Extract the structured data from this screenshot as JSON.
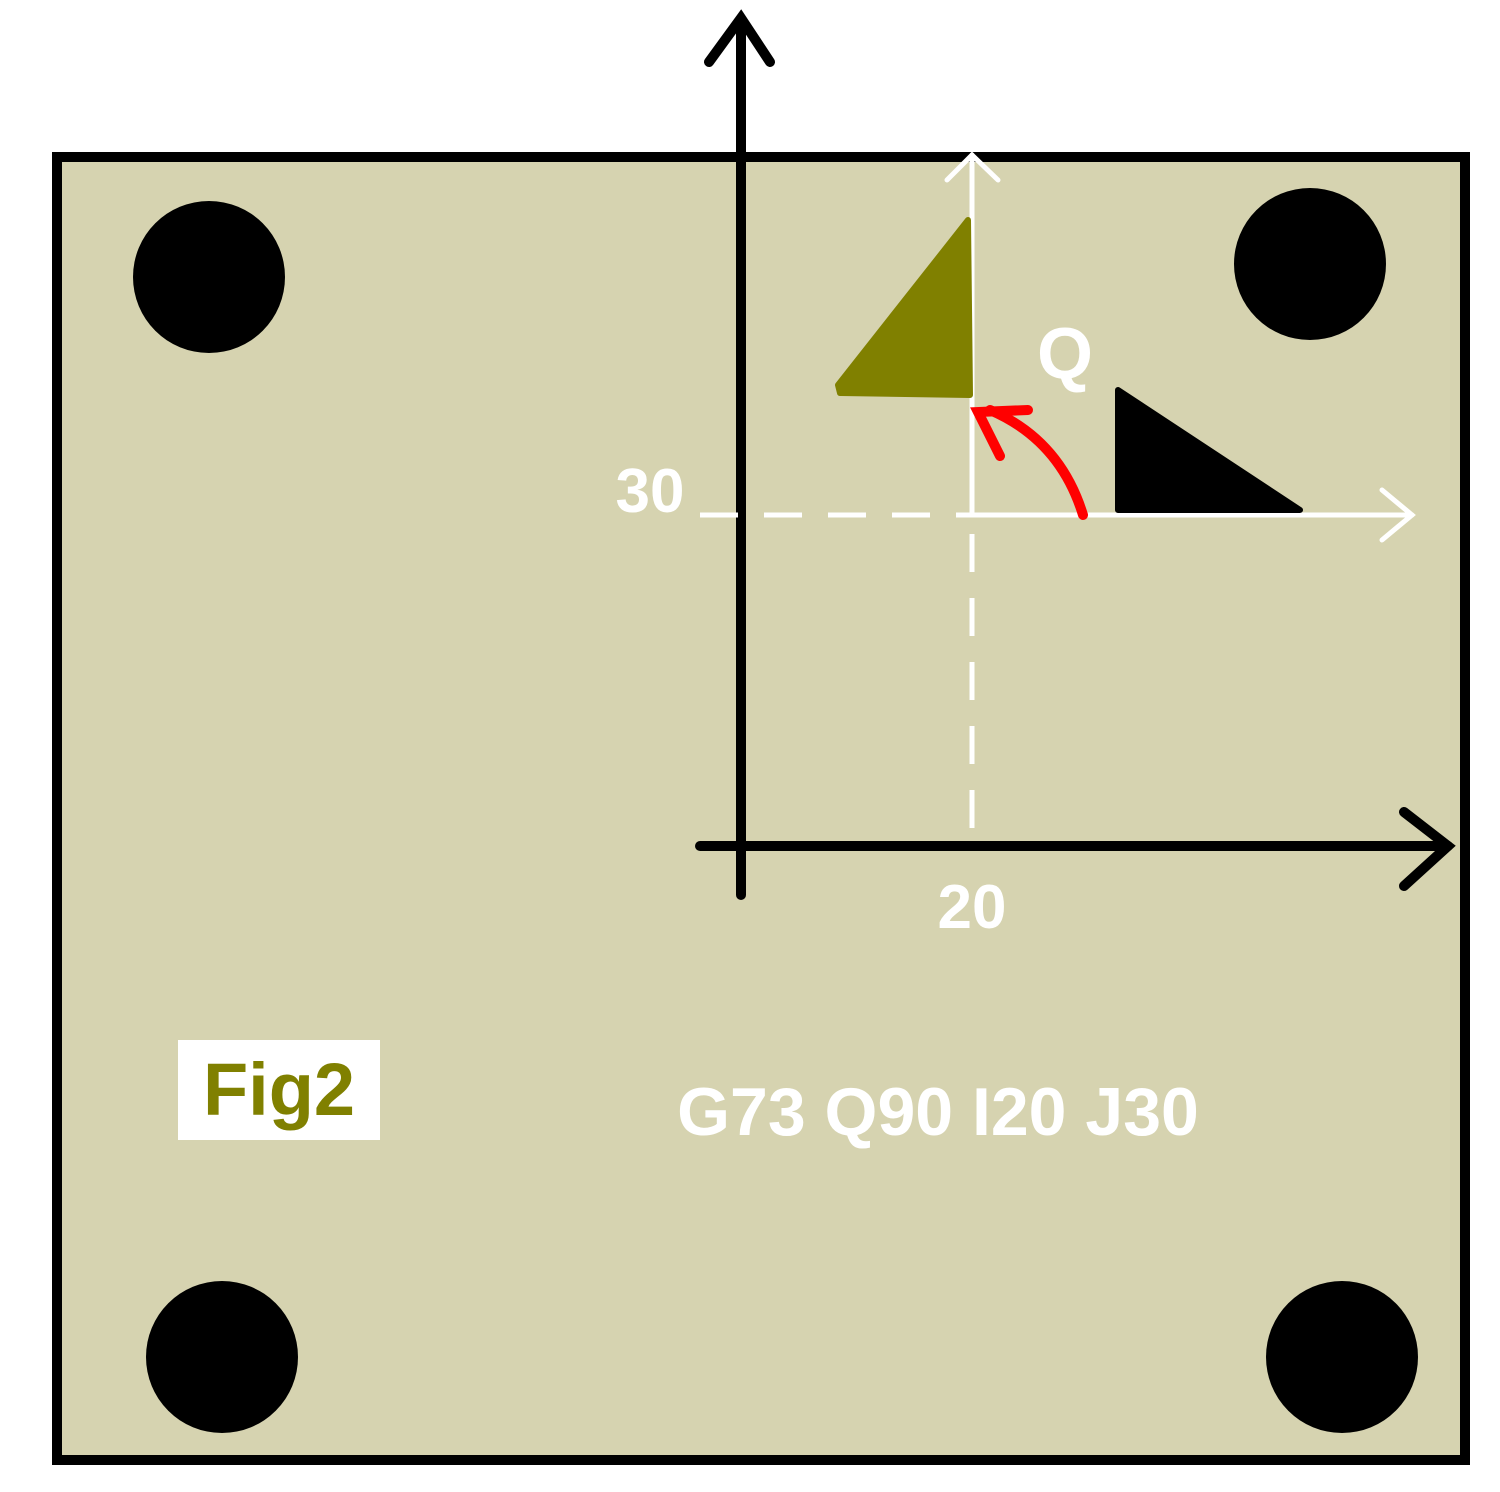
{
  "figure": {
    "label": "Fig2",
    "command": "G73 Q90 I20 J30",
    "tick_x": "20",
    "tick_y": "30",
    "angle_label": "Q"
  },
  "colors": {
    "plate": "#d6d3b0",
    "outline": "#000000",
    "holes": "#000000",
    "axes": "#000000",
    "local_axes": "#ffffff",
    "rotated_part": "#808000",
    "original_part": "#000000",
    "rotation_arrow": "#ff0000",
    "label_text": "#ffffff",
    "fig_text": "#808000"
  }
}
